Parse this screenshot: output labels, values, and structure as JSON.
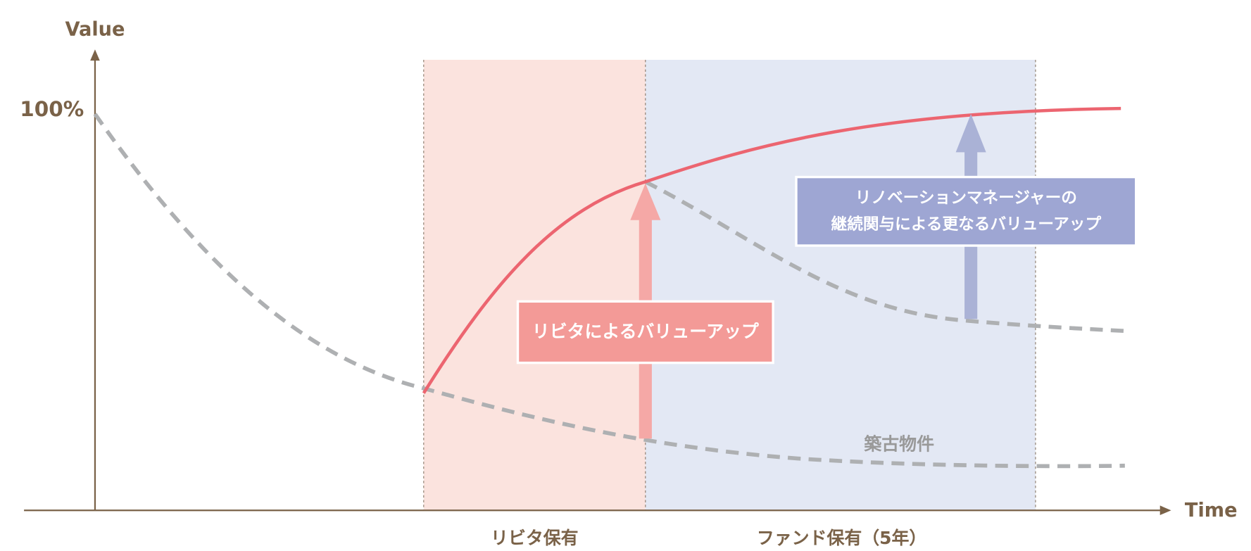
{
  "axis": {
    "y_label": "Value",
    "y_mark": "100%",
    "x_label": "Time"
  },
  "periods": [
    "リビタ保有",
    "ファンド保有（5年）"
  ],
  "callouts": {
    "ribita": "リビタによるバリューアップ",
    "manager": [
      "リノベーションマネージャーの",
      "継続関与による更なるバリューアップ"
    ]
  },
  "curve_label": "築古物件"
}
